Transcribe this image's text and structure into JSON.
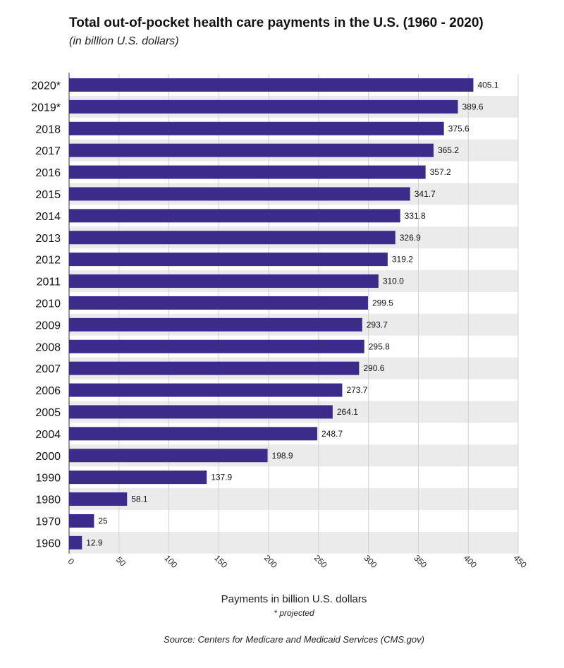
{
  "chart_data": {
    "type": "bar",
    "orientation": "horizontal",
    "title": "Total out-of-pocket health care payments in the U.S. (1960 - 2020)",
    "subtitle": "(in billion U.S. dollars)",
    "xlabel": "Payments in billion U.S. dollars",
    "note": "* projected",
    "source": "Source: Centers for Medicare and Medicaid Services (CMS.gov)",
    "categories": [
      "2020*",
      "2019*",
      "2018",
      "2017",
      "2016",
      "2015",
      "2014",
      "2013",
      "2012",
      "2011",
      "2010",
      "2009",
      "2008",
      "2007",
      "2006",
      "2005",
      "2004",
      "2000",
      "1990",
      "1980",
      "1970",
      "1960"
    ],
    "values": [
      405.1,
      389.6,
      375.6,
      365.2,
      357.2,
      341.7,
      331.8,
      326.9,
      319.2,
      310.0,
      299.5,
      293.7,
      295.8,
      290.6,
      273.7,
      264.1,
      248.7,
      198.9,
      137.9,
      58.1,
      25,
      12.9
    ],
    "value_labels": [
      "405.1",
      "389.6",
      "375.6",
      "365.2",
      "357.2",
      "341.7",
      "331.8",
      "326.9",
      "319.2",
      "310.0",
      "299.5",
      "293.7",
      "295.8",
      "290.6",
      "273.7",
      "264.1",
      "248.7",
      "198.9",
      "137.9",
      "58.1",
      "25",
      "12.9"
    ],
    "xlim": [
      0,
      450
    ],
    "xticks": [
      "0",
      "50",
      "100",
      "150",
      "200",
      "250",
      "300",
      "350",
      "400",
      "450"
    ],
    "grid": true,
    "colors": {
      "bar": "#3d2b8c",
      "band": "#ebebeb",
      "grid": "#d0d0d0"
    }
  }
}
